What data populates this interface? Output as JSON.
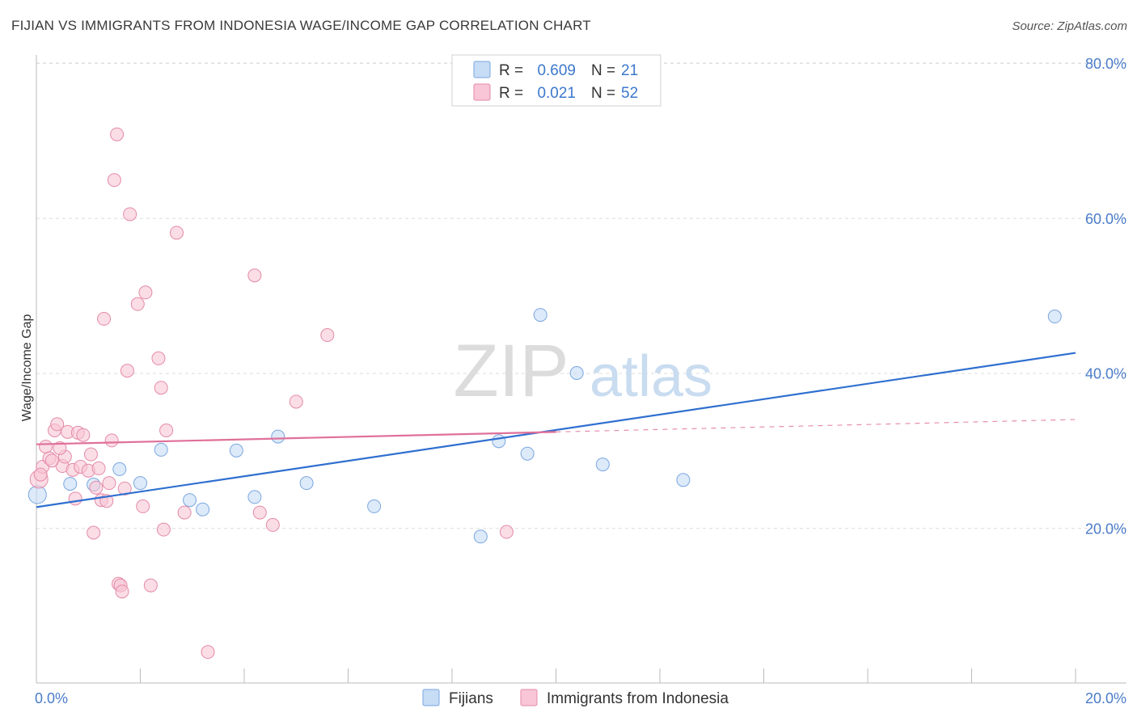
{
  "chart_data": {
    "type": "scatter",
    "title": "FIJIAN VS IMMIGRANTS FROM INDONESIA WAGE/INCOME GAP CORRELATION CHART",
    "source": "Source: ZipAtlas.com",
    "xlabel": "",
    "ylabel": "Wage/Income Gap",
    "xlim": [
      0,
      20
    ],
    "ylim": [
      0,
      80
    ],
    "x_tick_labels": [
      "0.0%",
      "20.0%"
    ],
    "y_ticks": [
      20,
      40,
      60,
      80
    ],
    "y_tick_labels": [
      "20.0%",
      "40.0%",
      "60.0%",
      "80.0%"
    ],
    "watermark": "ZIPatlas",
    "legend": {
      "position": "top-center",
      "rows": [
        {
          "r_label": "R =",
          "r_value": "0.609",
          "n_label": "N =",
          "n_value": "21"
        },
        {
          "r_label": "R =",
          "r_value": "0.021",
          "n_label": "N =",
          "n_value": "52"
        }
      ]
    },
    "series": [
      {
        "name": "Fijians",
        "color": "#7aa6e0",
        "fill": "#c7dcf5",
        "trend": {
          "x0": 0,
          "y0": 22.7,
          "x1": 20,
          "y1": 42.6,
          "color": "#2f6fd0"
        },
        "points": [
          {
            "x": 0.02,
            "y": 24.3
          },
          {
            "x": 0.65,
            "y": 25.7
          },
          {
            "x": 1.1,
            "y": 25.6
          },
          {
            "x": 1.6,
            "y": 27.6
          },
          {
            "x": 2.0,
            "y": 25.8
          },
          {
            "x": 2.4,
            "y": 30.1
          },
          {
            "x": 2.95,
            "y": 23.6
          },
          {
            "x": 3.2,
            "y": 22.4
          },
          {
            "x": 3.85,
            "y": 30.0
          },
          {
            "x": 4.2,
            "y": 24.0
          },
          {
            "x": 4.65,
            "y": 31.8
          },
          {
            "x": 5.2,
            "y": 25.8
          },
          {
            "x": 6.5,
            "y": 22.8
          },
          {
            "x": 8.55,
            "y": 18.9
          },
          {
            "x": 8.9,
            "y": 31.2
          },
          {
            "x": 9.45,
            "y": 29.6
          },
          {
            "x": 9.7,
            "y": 47.5
          },
          {
            "x": 10.4,
            "y": 40.0
          },
          {
            "x": 10.9,
            "y": 28.2
          },
          {
            "x": 12.45,
            "y": 26.2
          },
          {
            "x": 19.6,
            "y": 47.3
          }
        ]
      },
      {
        "name": "Immigrants from Indonesia",
        "color": "#e48aa8",
        "fill": "#f8c6d6",
        "trend": {
          "x0": 0,
          "y0": 30.8,
          "x1": 10.0,
          "y1": 32.4,
          "dash_x1": 20,
          "dash_y1": 34.0,
          "color": "#e0709a"
        },
        "points": [
          {
            "x": 0.05,
            "y": 26.3
          },
          {
            "x": 0.12,
            "y": 27.9
          },
          {
            "x": 0.18,
            "y": 30.5
          },
          {
            "x": 0.25,
            "y": 29.0
          },
          {
            "x": 0.35,
            "y": 32.6
          },
          {
            "x": 0.4,
            "y": 33.4
          },
          {
            "x": 0.5,
            "y": 28.0
          },
          {
            "x": 0.55,
            "y": 29.2
          },
          {
            "x": 0.6,
            "y": 32.4
          },
          {
            "x": 0.7,
            "y": 27.5
          },
          {
            "x": 0.75,
            "y": 23.8
          },
          {
            "x": 0.8,
            "y": 32.3
          },
          {
            "x": 0.85,
            "y": 27.9
          },
          {
            "x": 0.9,
            "y": 32.0
          },
          {
            "x": 1.0,
            "y": 27.4
          },
          {
            "x": 1.05,
            "y": 29.5
          },
          {
            "x": 1.1,
            "y": 19.4
          },
          {
            "x": 1.15,
            "y": 25.2
          },
          {
            "x": 1.2,
            "y": 27.7
          },
          {
            "x": 1.25,
            "y": 23.6
          },
          {
            "x": 1.3,
            "y": 47.0
          },
          {
            "x": 1.35,
            "y": 23.5
          },
          {
            "x": 1.4,
            "y": 25.8
          },
          {
            "x": 1.45,
            "y": 31.3
          },
          {
            "x": 1.5,
            "y": 64.9
          },
          {
            "x": 1.55,
            "y": 70.8
          },
          {
            "x": 1.58,
            "y": 12.8
          },
          {
            "x": 1.62,
            "y": 12.6
          },
          {
            "x": 1.65,
            "y": 11.8
          },
          {
            "x": 1.7,
            "y": 25.1
          },
          {
            "x": 1.75,
            "y": 40.3
          },
          {
            "x": 1.8,
            "y": 60.5
          },
          {
            "x": 1.95,
            "y": 48.9
          },
          {
            "x": 2.05,
            "y": 22.8
          },
          {
            "x": 2.1,
            "y": 50.4
          },
          {
            "x": 2.2,
            "y": 12.6
          },
          {
            "x": 2.35,
            "y": 41.9
          },
          {
            "x": 2.4,
            "y": 38.1
          },
          {
            "x": 2.45,
            "y": 19.8
          },
          {
            "x": 2.5,
            "y": 32.6
          },
          {
            "x": 2.7,
            "y": 58.1
          },
          {
            "x": 2.85,
            "y": 22.0
          },
          {
            "x": 3.3,
            "y": 4.0
          },
          {
            "x": 4.2,
            "y": 52.6
          },
          {
            "x": 4.3,
            "y": 22.0
          },
          {
            "x": 4.55,
            "y": 20.4
          },
          {
            "x": 5.0,
            "y": 36.3
          },
          {
            "x": 5.6,
            "y": 44.9
          },
          {
            "x": 9.05,
            "y": 19.5
          },
          {
            "x": 0.08,
            "y": 26.9
          },
          {
            "x": 0.3,
            "y": 28.7
          },
          {
            "x": 0.45,
            "y": 30.3
          }
        ]
      }
    ]
  }
}
